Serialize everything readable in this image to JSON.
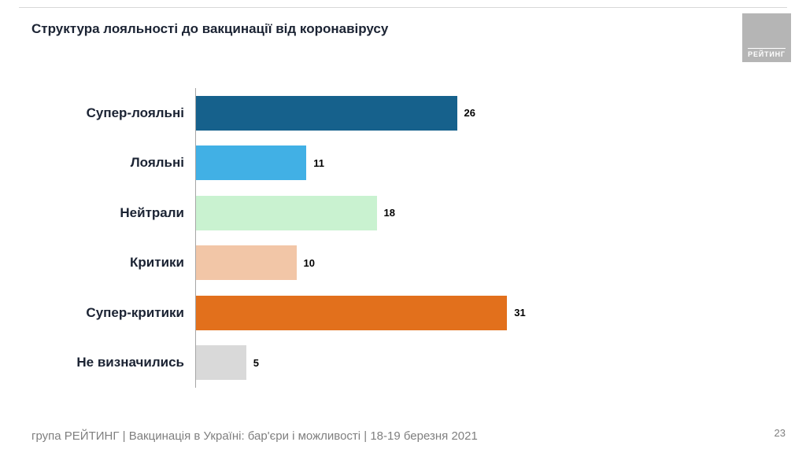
{
  "slide": {
    "title": "Структура лояльності до вакцинації від коронавірусу",
    "footer": "група РЕЙТИНГ | Вакцинація в Україні: бар'єри і можливості | 18-19 березня 2021",
    "page_number": "23",
    "logo_text": "РЕЙТИНГ"
  },
  "chart_data": {
    "type": "bar",
    "orientation": "horizontal",
    "title": "Структура лояльності до вакцинації від коронавірусу",
    "categories": [
      "Супер-лояльні",
      "Лояльні",
      "Нейтрали",
      "Критики",
      "Супер-критики",
      "Не визначились"
    ],
    "values": [
      26,
      11,
      18,
      10,
      31,
      5
    ],
    "bar_colors": [
      "#16618c",
      "#41b0e5",
      "#c9f2d0",
      "#f2c6a7",
      "#e2701c",
      "#d9d9d9"
    ],
    "xlim": [
      0,
      40
    ],
    "data_labels": true,
    "legend": "none",
    "grid": false
  }
}
